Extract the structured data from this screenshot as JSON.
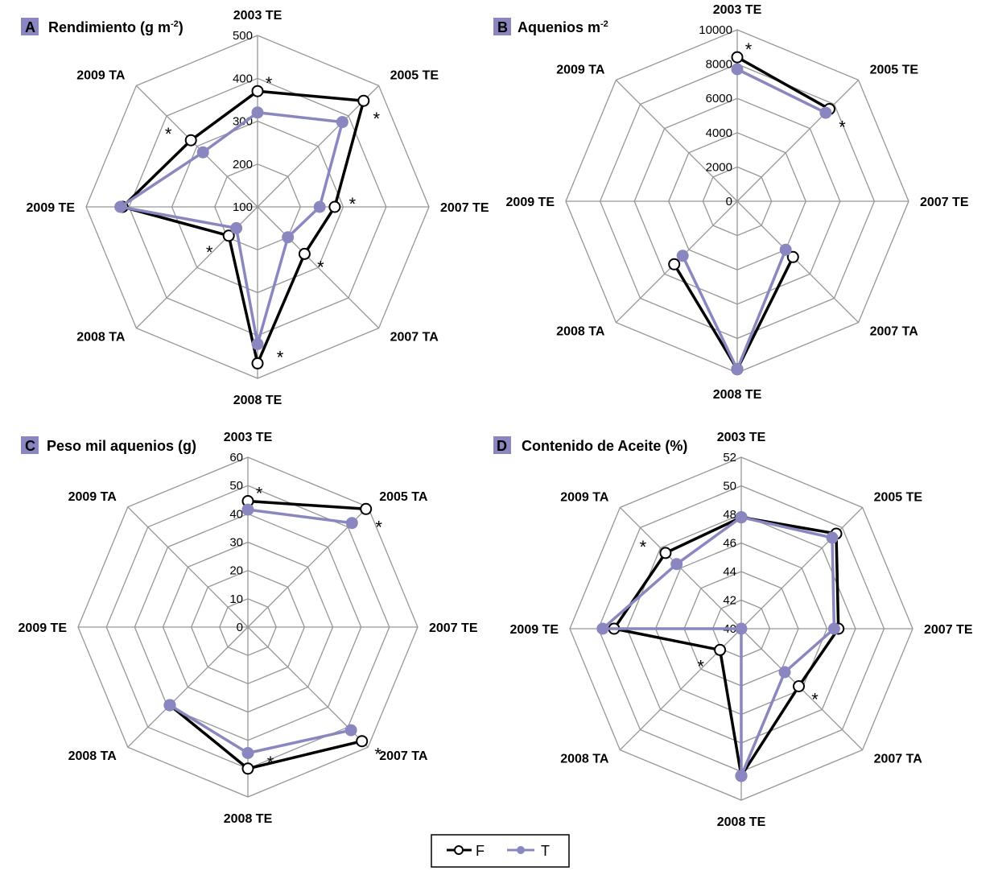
{
  "figure": {
    "colors": {
      "F": "#000000",
      "T": "#8a87c0",
      "grid": "#969696",
      "badge": "#8a87c0"
    }
  },
  "legend": {
    "entries": [
      {
        "key": "F",
        "label": "F"
      },
      {
        "key": "T",
        "label": "T"
      }
    ]
  },
  "chart_data": [
    {
      "type": "radar",
      "panel": "A",
      "title": "Rendimiento (g m",
      "title_sup": "-2",
      "title_suffix": ")",
      "axes": [
        "2003 TE",
        "2005 TE",
        "2007 TE",
        "2007 TA",
        "2008 TE",
        "2008 TA",
        "2009 TE",
        "2009 TA"
      ],
      "rlim": [
        100,
        500
      ],
      "ticks": [
        100,
        200,
        300,
        400,
        500
      ],
      "tick_labels": [
        "100",
        "200",
        "300",
        "400",
        "500"
      ],
      "grid": true,
      "series": [
        {
          "name": "F",
          "values": [
            370,
            450,
            280,
            255,
            465,
            195,
            415,
            320
          ]
        },
        {
          "name": "T",
          "values": [
            320,
            380,
            245,
            200,
            420,
            170,
            420,
            280
          ]
        }
      ],
      "significance": [
        "*",
        "*",
        "*",
        "*",
        "*",
        "*",
        "",
        "*"
      ]
    },
    {
      "type": "radar",
      "panel": "B",
      "title": "Aquenios m",
      "title_sup": "-2",
      "title_suffix": "",
      "axes": [
        "2003 TE",
        "2005 TE",
        "2007 TE",
        "2007 TA",
        "2008 TE",
        "2008 TA",
        "2009 TE",
        "2009 TA"
      ],
      "rlim": [
        0,
        10000
      ],
      "ticks": [
        0,
        2000,
        4000,
        6000,
        8000,
        10000
      ],
      "tick_labels": [
        "0",
        "2000",
        "4000",
        "6000",
        "8000",
        "10000"
      ],
      "grid": true,
      "series": [
        {
          "name": "F",
          "values": [
            8400,
            7600,
            null,
            4600,
            9800,
            5200,
            null,
            null
          ]
        },
        {
          "name": "T",
          "values": [
            7700,
            7300,
            null,
            4000,
            9800,
            4500,
            null,
            null
          ]
        }
      ],
      "significance": [
        "*",
        "*",
        "",
        "",
        "",
        "",
        "",
        ""
      ]
    },
    {
      "type": "radar",
      "panel": "C",
      "title": "Peso mil aquenios (g)",
      "title_sup": "",
      "title_suffix": "",
      "axes": [
        "2003 TE",
        "2005 TA",
        "2007 TE",
        "2007 TA",
        "2008 TE",
        "2008 TA",
        "2009 TE",
        "2009 TA"
      ],
      "rlim": [
        0,
        60
      ],
      "ticks": [
        0,
        10,
        20,
        30,
        40,
        50,
        60
      ],
      "tick_labels": [
        "0",
        "10",
        "20",
        "30",
        "40",
        "50",
        "60"
      ],
      "grid": true,
      "series": [
        {
          "name": "F",
          "values": [
            44.5,
            59,
            null,
            57,
            50,
            39,
            null,
            null
          ]
        },
        {
          "name": "T",
          "values": [
            41.5,
            52,
            null,
            51.5,
            44.5,
            39,
            null,
            null
          ]
        }
      ],
      "significance": [
        "*",
        "*",
        "",
        "*",
        "*",
        "",
        "",
        ""
      ]
    },
    {
      "type": "radar",
      "panel": "D",
      "title": "Contenido de Aceite (%)",
      "title_sup": "",
      "title_suffix": "",
      "axes": [
        "2003 TE",
        "2005 TE",
        "2007 TE",
        "2007 TA",
        "2008 TE",
        "2008 TA",
        "2009 TE",
        "2009 TA"
      ],
      "rlim": [
        40,
        52
      ],
      "ticks": [
        40,
        42,
        44,
        46,
        48,
        50,
        52
      ],
      "tick_labels": [
        "40",
        "42",
        "44",
        "46",
        "48",
        "50",
        "52"
      ],
      "grid": true,
      "series": [
        {
          "name": "F",
          "values": [
            47.8,
            49.4,
            46.8,
            45.7,
            50.3,
            42.1,
            48.9,
            47.5
          ]
        },
        {
          "name": "T",
          "values": [
            47.8,
            49.0,
            46.5,
            44.3,
            50.3,
            40.0,
            49.7,
            46.4
          ]
        }
      ],
      "significance": [
        "",
        "",
        "",
        "*",
        "",
        "*",
        "",
        "*"
      ]
    }
  ]
}
